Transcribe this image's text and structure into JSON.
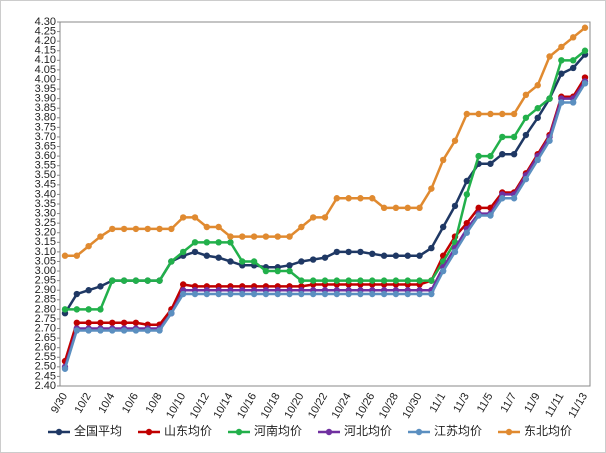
{
  "chart_data": {
    "type": "line",
    "categories": [
      "9/30",
      null,
      "10/2",
      null,
      "10/4",
      null,
      "10/6",
      null,
      "10/8",
      null,
      "10/10",
      null,
      "10/12",
      null,
      "10/14",
      null,
      "10/16",
      null,
      "10/18",
      null,
      "10/20",
      null,
      "10/22",
      null,
      "10/24",
      null,
      "10/26",
      null,
      "10/28",
      null,
      "10/30",
      null,
      "11/1",
      null,
      "11/3",
      null,
      "11/5",
      null,
      "11/7",
      null,
      "11/9",
      null,
      "11/11",
      null,
      "11/13"
    ],
    "series": [
      {
        "name": "全国平均",
        "color": "#1f3864",
        "values": [
          2.78,
          2.88,
          2.9,
          2.92,
          2.95,
          2.95,
          2.95,
          2.95,
          2.95,
          3.05,
          3.08,
          3.1,
          3.08,
          3.07,
          3.05,
          3.03,
          3.03,
          3.02,
          3.02,
          3.03,
          3.05,
          3.06,
          3.07,
          3.1,
          3.1,
          3.1,
          3.09,
          3.08,
          3.08,
          3.08,
          3.08,
          3.12,
          3.23,
          3.34,
          3.47,
          3.56,
          3.56,
          3.61,
          3.61,
          3.71,
          3.8,
          3.9,
          4.03,
          4.06,
          4.13
        ]
      },
      {
        "name": "山东均价",
        "color": "#c00000",
        "values": [
          2.53,
          2.73,
          2.73,
          2.73,
          2.73,
          2.73,
          2.73,
          2.72,
          2.72,
          2.8,
          2.93,
          2.92,
          2.92,
          2.92,
          2.92,
          2.92,
          2.92,
          2.92,
          2.92,
          2.92,
          2.92,
          2.93,
          2.93,
          2.93,
          2.93,
          2.93,
          2.93,
          2.93,
          2.93,
          2.93,
          2.93,
          2.95,
          3.08,
          3.18,
          3.25,
          3.33,
          3.33,
          3.41,
          3.41,
          3.51,
          3.61,
          3.71,
          3.91,
          3.91,
          4.01
        ]
      },
      {
        "name": "河南均价",
        "color": "#22b04b",
        "values": [
          2.8,
          2.8,
          2.8,
          2.8,
          2.95,
          2.95,
          2.95,
          2.95,
          2.95,
          3.05,
          3.1,
          3.15,
          3.15,
          3.15,
          3.15,
          3.05,
          3.05,
          3.0,
          3.0,
          3.0,
          2.95,
          2.95,
          2.95,
          2.95,
          2.95,
          2.95,
          2.95,
          2.95,
          2.95,
          2.95,
          2.95,
          2.95,
          3.05,
          3.15,
          3.4,
          3.6,
          3.6,
          3.7,
          3.7,
          3.8,
          3.85,
          3.9,
          4.1,
          4.1,
          4.15
        ]
      },
      {
        "name": "河北均价",
        "color": "#7030a0",
        "values": [
          2.5,
          2.7,
          2.7,
          2.7,
          2.7,
          2.7,
          2.7,
          2.7,
          2.7,
          2.78,
          2.9,
          2.9,
          2.9,
          2.9,
          2.9,
          2.9,
          2.9,
          2.9,
          2.9,
          2.9,
          2.9,
          2.9,
          2.9,
          2.9,
          2.9,
          2.9,
          2.9,
          2.9,
          2.9,
          2.9,
          2.9,
          2.9,
          3.02,
          3.12,
          3.22,
          3.3,
          3.3,
          3.4,
          3.4,
          3.5,
          3.6,
          3.7,
          3.9,
          3.9,
          3.99
        ]
      },
      {
        "name": "江苏均价",
        "color": "#5b8fc0",
        "values": [
          2.49,
          2.69,
          2.69,
          2.69,
          2.69,
          2.69,
          2.69,
          2.69,
          2.69,
          2.78,
          2.88,
          2.88,
          2.88,
          2.88,
          2.88,
          2.88,
          2.88,
          2.88,
          2.88,
          2.88,
          2.88,
          2.88,
          2.88,
          2.88,
          2.88,
          2.88,
          2.88,
          2.88,
          2.88,
          2.88,
          2.88,
          2.88,
          3.0,
          3.1,
          3.2,
          3.29,
          3.29,
          3.38,
          3.38,
          3.48,
          3.58,
          3.68,
          3.88,
          3.88,
          3.98
        ]
      },
      {
        "name": "东北均价",
        "color": "#e08a30",
        "values": [
          3.08,
          3.08,
          3.13,
          3.18,
          3.22,
          3.22,
          3.22,
          3.22,
          3.22,
          3.22,
          3.28,
          3.28,
          3.23,
          3.23,
          3.18,
          3.18,
          3.18,
          3.18,
          3.18,
          3.18,
          3.23,
          3.28,
          3.28,
          3.38,
          3.38,
          3.38,
          3.38,
          3.33,
          3.33,
          3.33,
          3.33,
          3.43,
          3.58,
          3.68,
          3.82,
          3.82,
          3.82,
          3.82,
          3.82,
          3.92,
          3.97,
          4.12,
          4.17,
          4.22,
          4.27
        ]
      }
    ],
    "ylim": [
      2.4,
      4.3
    ],
    "yticks": [
      {
        "value": 2.4,
        "label": "2.40"
      },
      {
        "value": 2.45,
        "label": "2.45"
      },
      {
        "value": 2.5,
        "label": "2.50"
      },
      {
        "value": 2.55,
        "label": "2.55"
      },
      {
        "value": 2.6,
        "label": "2.60"
      },
      {
        "value": 2.65,
        "label": "2.65"
      },
      {
        "value": 2.7,
        "label": "2.70"
      },
      {
        "value": 2.75,
        "label": "2.75"
      },
      {
        "value": 2.8,
        "label": "2.80"
      },
      {
        "value": 2.85,
        "label": "2.85"
      },
      {
        "value": 2.9,
        "label": "2.90"
      },
      {
        "value": 2.95,
        "label": "2.95"
      },
      {
        "value": 3.0,
        "label": "3.00"
      },
      {
        "value": 3.05,
        "label": "3.05"
      },
      {
        "value": 3.1,
        "label": "3.10"
      },
      {
        "value": 3.15,
        "label": "3.15"
      },
      {
        "value": 3.2,
        "label": "3.20"
      },
      {
        "value": 3.25,
        "label": "3.25"
      },
      {
        "value": 3.3,
        "label": "3.30"
      },
      {
        "value": 3.35,
        "label": "3.35"
      },
      {
        "value": 3.4,
        "label": "3.40"
      },
      {
        "value": 3.45,
        "label": "3.45"
      },
      {
        "value": 3.5,
        "label": "3.50"
      },
      {
        "value": 3.55,
        "label": "3.55"
      },
      {
        "value": 3.6,
        "label": "3.60"
      },
      {
        "value": 3.65,
        "label": "3.65"
      },
      {
        "value": 3.7,
        "label": "3.70"
      },
      {
        "value": 3.75,
        "label": "3.75"
      },
      {
        "value": 3.8,
        "label": "3.80"
      },
      {
        "value": 3.85,
        "label": "3.85"
      },
      {
        "value": 3.9,
        "label": "3.90"
      },
      {
        "value": 3.95,
        "label": "3.95"
      },
      {
        "value": 4.0,
        "label": "4.00"
      },
      {
        "value": 4.05,
        "label": "4.05"
      },
      {
        "value": 4.1,
        "label": "4.10"
      },
      {
        "value": 4.15,
        "label": "4.15"
      },
      {
        "value": 4.2,
        "label": "4.20"
      },
      {
        "value": 4.25,
        "label": "4.25"
      },
      {
        "value": 4.3,
        "label": "4.30"
      }
    ],
    "grid": false,
    "legend": "bottom"
  }
}
